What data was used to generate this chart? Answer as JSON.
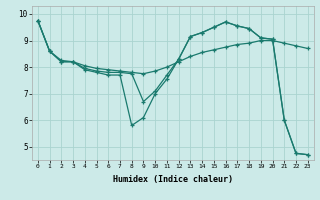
{
  "xlabel": "Humidex (Indice chaleur)",
  "bg_color": "#cceae8",
  "grid_color": "#aad4d0",
  "line_color": "#1a7a6e",
  "xlim": [
    -0.5,
    23.5
  ],
  "ylim": [
    4.5,
    10.3
  ],
  "xticks": [
    0,
    1,
    2,
    3,
    4,
    5,
    6,
    7,
    8,
    9,
    10,
    11,
    12,
    13,
    14,
    15,
    16,
    17,
    18,
    19,
    20,
    21,
    22,
    23
  ],
  "yticks": [
    5,
    6,
    7,
    8,
    9,
    10
  ],
  "line1_x": [
    0,
    1,
    2,
    3,
    4,
    5,
    6,
    7,
    8,
    9,
    10,
    11,
    12,
    13,
    14,
    15,
    16,
    17,
    18,
    19,
    20,
    21,
    22,
    23
  ],
  "line1_y": [
    9.75,
    8.6,
    8.2,
    8.2,
    7.9,
    7.8,
    7.7,
    7.7,
    5.8,
    6.1,
    7.0,
    7.55,
    8.3,
    9.15,
    9.3,
    9.5,
    9.7,
    9.55,
    9.45,
    9.1,
    9.05,
    6.0,
    4.75,
    4.7
  ],
  "line2_x": [
    0,
    1,
    2,
    3,
    4,
    5,
    6,
    7,
    8,
    9,
    10,
    11,
    12,
    13,
    14,
    15,
    16,
    17,
    18,
    19,
    20,
    21,
    22,
    23
  ],
  "line2_y": [
    9.75,
    8.6,
    8.2,
    8.2,
    7.95,
    7.85,
    7.8,
    7.8,
    7.75,
    6.7,
    7.1,
    7.7,
    8.3,
    9.15,
    9.3,
    9.5,
    9.7,
    9.55,
    9.45,
    9.1,
    9.05,
    6.0,
    4.75,
    4.7
  ],
  "line3_x": [
    0,
    1,
    2,
    3,
    4,
    5,
    6,
    7,
    8,
    9,
    10,
    11,
    12,
    13,
    14,
    15,
    16,
    17,
    18,
    19,
    20,
    21,
    22,
    23
  ],
  "line3_y": [
    9.75,
    8.6,
    8.25,
    8.2,
    8.05,
    7.95,
    7.9,
    7.85,
    7.8,
    7.75,
    7.85,
    8.0,
    8.2,
    8.4,
    8.55,
    8.65,
    8.75,
    8.85,
    8.9,
    9.0,
    9.0,
    8.9,
    8.8,
    8.7
  ]
}
